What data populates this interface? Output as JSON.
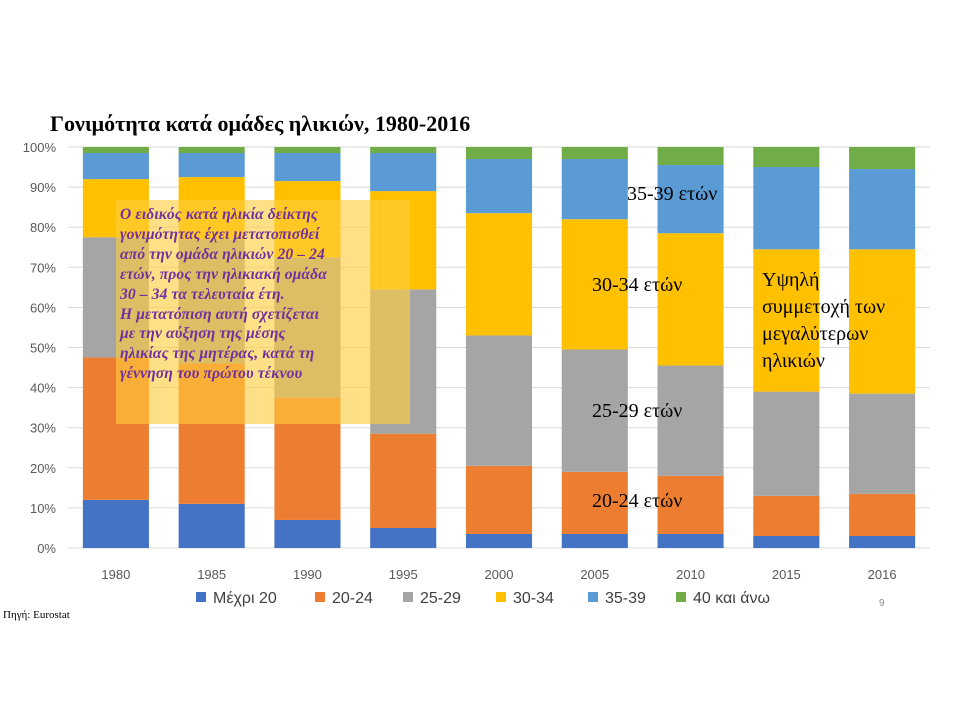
{
  "slide": {
    "title": "Γονιμότητα κατά ομάδες ηλικιών, 1980-2016",
    "overlay_text": "Ο ειδικός κατά ηλικία δείκτης\nγονιμότητας  έχει μετατοπισθεί\nαπό την ομάδα ηλικιών 20 – 24\nετών, προς την ηλικιακή ομάδα\n30 – 34 τα τελευταία έτη.\nΗ μετατόπιση αυτή σχετίζεται\nμε την αύξηση της μέσης\nηλικίας της μητέρας, κατά τη\nγέννηση του πρώτου τέκνου",
    "annotations": {
      "age_35_39": "35-39 ετών",
      "age_30_34": "30-34 ετών",
      "age_25_29": "25-29 ετών",
      "age_20_24": "20-24 ετών",
      "older_participation": "Υψηλή\nσυμμετοχή των\nμεγαλύτερων\nηλικιών"
    },
    "source": "Πηγή: Eurostat",
    "page_number": "9"
  },
  "chart_data": {
    "type": "bar",
    "stacked": true,
    "percent_stacked": true,
    "title": "Γονιμότητα κατά ομάδες ηλικιών, 1980-2016",
    "categories": [
      "1980",
      "1985",
      "1990",
      "1995",
      "2000",
      "2005",
      "2010",
      "2015",
      "2016"
    ],
    "y_ticks": [
      "0%",
      "10%",
      "20%",
      "30%",
      "40%",
      "50%",
      "60%",
      "70%",
      "80%",
      "90%",
      "100%"
    ],
    "ylim": [
      0,
      100
    ],
    "grid": true,
    "legend_position": "bottom",
    "series": [
      {
        "name": "Μέχρι 20",
        "color": "#4472c4",
        "values": [
          12,
          11,
          7,
          5,
          3.5,
          3.5,
          3.5,
          3,
          3
        ]
      },
      {
        "name": "20-24",
        "color": "#ed7d31",
        "values": [
          35.5,
          35,
          30.5,
          23.5,
          17,
          15.5,
          14.5,
          10,
          10.5
        ]
      },
      {
        "name": "25-29",
        "color": "#a5a5a5",
        "values": [
          30,
          31,
          35,
          36,
          32.5,
          30.5,
          27.5,
          26,
          25
        ]
      },
      {
        "name": "30-34",
        "color": "#ffc000",
        "values": [
          14.5,
          15.5,
          19,
          24.5,
          30.5,
          32.5,
          33,
          35.5,
          36
        ]
      },
      {
        "name": "35-39",
        "color": "#5b9bd5",
        "values": [
          6.5,
          6,
          7,
          9.5,
          13.5,
          15,
          17,
          20.5,
          20
        ]
      },
      {
        "name": "40 και άνω",
        "color": "#70ad47",
        "values": [
          1.5,
          1.5,
          1.5,
          1.5,
          3,
          3,
          4.5,
          5,
          5.5
        ]
      }
    ]
  }
}
